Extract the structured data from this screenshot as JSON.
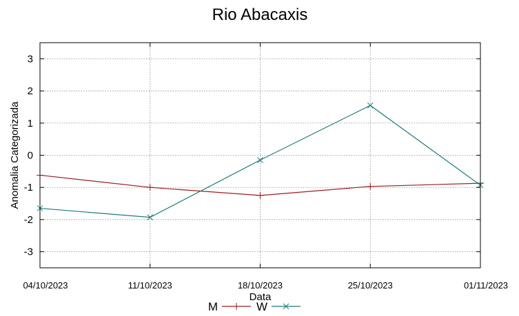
{
  "chart_data": {
    "type": "line",
    "title": "Rio Abacaxis",
    "xlabel": "Data",
    "ylabel": "Anomalia Categorizada",
    "x": [
      "04/10/2023",
      "11/10/2023",
      "18/10/2023",
      "25/10/2023",
      "01/11/2023"
    ],
    "ylim": [
      -3.5,
      3.5
    ],
    "yticks": [
      -3,
      -2,
      -1,
      0,
      1,
      2,
      3
    ],
    "grid": true,
    "legend": "bottom",
    "series": [
      {
        "name": "M",
        "color": "#9b1c1c",
        "marker": "plus",
        "values": [
          -0.62,
          -1.0,
          -1.25,
          -0.97,
          -0.87
        ]
      },
      {
        "name": "W",
        "color": "#1c7a7a",
        "marker": "cross",
        "values": [
          -1.65,
          -1.93,
          -0.15,
          1.55,
          -0.93
        ]
      }
    ]
  }
}
